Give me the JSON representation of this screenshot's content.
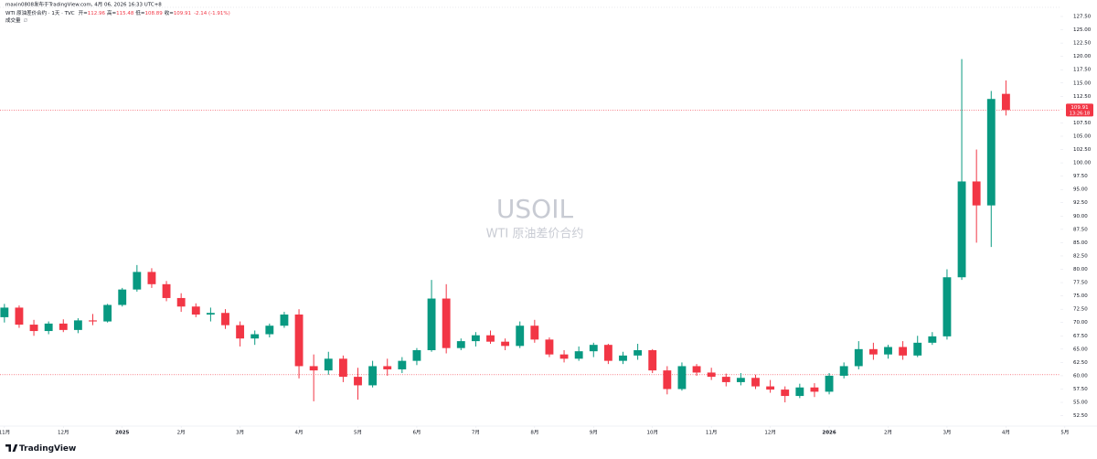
{
  "header": {
    "publisher": "maxin0808发布于TradingView.com, 4月 06, 2026 16:33 UTC+8",
    "symbol": "WTI 原油差价合约 · 1天 · TVC",
    "ohlc_labels": [
      "开=",
      "高=",
      "低=",
      "收="
    ],
    "change": "-2.14 (-1.91%)",
    "volume_label": "成交量",
    "volume_value": "∅"
  },
  "watermark": {
    "ticker": "USOIL",
    "name": "WTI 原油差价合约"
  },
  "logo": "TradingView",
  "chart_data": {
    "type": "candlestick",
    "up_color": "#089981",
    "down_color": "#f23645",
    "candles": [
      [
        71.0,
        73.5,
        70.0,
        72.8
      ],
      [
        72.8,
        73.2,
        69.0,
        69.6
      ],
      [
        69.6,
        70.5,
        67.5,
        68.4
      ],
      [
        68.4,
        70.2,
        67.8,
        69.8
      ],
      [
        69.8,
        70.6,
        68.2,
        68.6
      ],
      [
        68.6,
        70.8,
        68.0,
        70.4
      ],
      [
        70.4,
        71.6,
        69.5,
        70.2
      ],
      [
        70.2,
        73.5,
        70.0,
        73.3
      ],
      [
        73.3,
        76.5,
        73.0,
        76.2
      ],
      [
        76.2,
        80.8,
        75.8,
        79.5
      ],
      [
        79.5,
        80.2,
        76.5,
        77.2
      ],
      [
        77.2,
        77.8,
        74.0,
        74.6
      ],
      [
        74.6,
        75.5,
        72.0,
        73.0
      ],
      [
        73.0,
        73.6,
        71.0,
        71.5
      ],
      [
        71.5,
        72.8,
        70.2,
        71.8
      ],
      [
        71.8,
        72.5,
        68.8,
        69.5
      ],
      [
        69.5,
        70.2,
        65.5,
        67.0
      ],
      [
        67.0,
        68.5,
        65.8,
        67.8
      ],
      [
        67.8,
        69.8,
        67.2,
        69.4
      ],
      [
        69.4,
        72.0,
        69.0,
        71.5
      ],
      [
        71.5,
        72.5,
        59.5,
        61.8
      ],
      [
        61.8,
        64.0,
        55.2,
        61.0
      ],
      [
        61.0,
        64.5,
        60.2,
        63.2
      ],
      [
        63.2,
        63.8,
        58.8,
        59.8
      ],
      [
        59.8,
        61.5,
        55.5,
        58.2
      ],
      [
        58.2,
        62.8,
        57.8,
        61.8
      ],
      [
        61.8,
        63.2,
        60.0,
        61.2
      ],
      [
        61.2,
        63.5,
        60.5,
        62.8
      ],
      [
        62.8,
        65.2,
        62.0,
        64.8
      ],
      [
        64.8,
        78.0,
        64.5,
        74.5
      ],
      [
        74.5,
        77.2,
        64.2,
        65.2
      ],
      [
        65.2,
        67.0,
        64.8,
        66.5
      ],
      [
        66.5,
        68.2,
        65.5,
        67.6
      ],
      [
        67.6,
        68.5,
        66.0,
        66.4
      ],
      [
        66.4,
        67.0,
        64.8,
        65.6
      ],
      [
        65.6,
        70.2,
        65.2,
        69.4
      ],
      [
        69.4,
        70.5,
        66.2,
        66.8
      ],
      [
        66.8,
        67.2,
        63.5,
        64.0
      ],
      [
        64.0,
        64.8,
        62.5,
        63.2
      ],
      [
        63.2,
        65.5,
        62.8,
        64.6
      ],
      [
        64.6,
        66.2,
        63.5,
        65.8
      ],
      [
        65.8,
        66.0,
        62.2,
        62.8
      ],
      [
        62.8,
        64.5,
        62.2,
        63.8
      ],
      [
        63.8,
        66.0,
        63.0,
        64.8
      ],
      [
        64.8,
        65.0,
        60.5,
        61.0
      ],
      [
        61.0,
        61.8,
        56.5,
        57.5
      ],
      [
        57.5,
        62.5,
        57.2,
        61.8
      ],
      [
        61.8,
        62.2,
        60.0,
        60.6
      ],
      [
        60.6,
        61.5,
        59.2,
        59.8
      ],
      [
        59.8,
        60.4,
        58.0,
        58.8
      ],
      [
        58.8,
        60.5,
        58.2,
        59.6
      ],
      [
        59.6,
        60.2,
        57.5,
        58.0
      ],
      [
        58.0,
        59.2,
        56.8,
        57.4
      ],
      [
        57.4,
        58.0,
        55.0,
        56.2
      ],
      [
        56.2,
        58.5,
        55.8,
        57.8
      ],
      [
        57.8,
        58.6,
        56.0,
        57.0
      ],
      [
        57.0,
        60.5,
        56.5,
        60.0
      ],
      [
        60.0,
        62.5,
        59.5,
        61.8
      ],
      [
        61.8,
        66.5,
        61.2,
        65.0
      ],
      [
        65.0,
        66.2,
        63.0,
        64.0
      ],
      [
        64.0,
        65.8,
        63.2,
        65.4
      ],
      [
        65.4,
        66.5,
        63.0,
        63.8
      ],
      [
        63.8,
        67.5,
        63.5,
        66.2
      ],
      [
        66.2,
        68.2,
        65.8,
        67.4
      ],
      [
        67.4,
        80.0,
        66.8,
        78.5
      ],
      [
        78.5,
        119.5,
        78.0,
        96.5
      ],
      [
        96.5,
        102.5,
        85.0,
        92.0
      ],
      [
        92.0,
        113.5,
        84.2,
        112.0
      ],
      [
        112.96,
        115.48,
        108.89,
        109.91
      ]
    ],
    "last_price_timer": "13:26:18",
    "reference_line": 60.2,
    "xlim": [
      -0.3,
      71.7
    ],
    "xticks": [
      {
        "value": 0,
        "label": "11月"
      },
      {
        "value": 4,
        "label": "12月"
      },
      {
        "value": 8,
        "label": "2025"
      },
      {
        "value": 12,
        "label": "2月"
      },
      {
        "value": 16,
        "label": "3月"
      },
      {
        "value": 20,
        "label": "4月"
      },
      {
        "value": 24,
        "label": "5月"
      },
      {
        "value": 28,
        "label": "6月"
      },
      {
        "value": 32,
        "label": "7月"
      },
      {
        "value": 36,
        "label": "8月"
      },
      {
        "value": 40,
        "label": "9月"
      },
      {
        "value": 44,
        "label": "10月"
      },
      {
        "value": 48,
        "label": "11月"
      },
      {
        "value": 52,
        "label": "12月"
      },
      {
        "value": 56,
        "label": "2026"
      },
      {
        "value": 60,
        "label": "2月"
      },
      {
        "value": 64,
        "label": "3月"
      },
      {
        "value": 68,
        "label": "4月"
      },
      {
        "value": 72,
        "label": "5月"
      }
    ],
    "ylim": [
      52.5,
      127.5
    ],
    "yticks": [
      {
        "value": 52.5,
        "label": "52.50"
      },
      {
        "value": 55,
        "label": "55.00"
      },
      {
        "value": 57.5,
        "label": "57.50"
      },
      {
        "value": 60,
        "label": "60.00"
      },
      {
        "value": 62.5,
        "label": "62.50"
      },
      {
        "value": 65,
        "label": "65.00"
      },
      {
        "value": 67.5,
        "label": "67.50"
      },
      {
        "value": 70,
        "label": "70.00"
      },
      {
        "value": 72.5,
        "label": "72.50"
      },
      {
        "value": 75,
        "label": "75.00"
      },
      {
        "value": 77.5,
        "label": "77.50"
      },
      {
        "value": 80,
        "label": "80.00"
      },
      {
        "value": 82.5,
        "label": "82.50"
      },
      {
        "value": 85,
        "label": "85.00"
      },
      {
        "value": 87.5,
        "label": "87.50"
      },
      {
        "value": 90,
        "label": "90.00"
      },
      {
        "value": 92.5,
        "label": "92.50"
      },
      {
        "value": 95,
        "label": "95.00"
      },
      {
        "value": 97.5,
        "label": "97.50"
      },
      {
        "value": 100,
        "label": "100.00"
      },
      {
        "value": 102.5,
        "label": "102.50"
      },
      {
        "value": 105,
        "label": "105.00"
      },
      {
        "value": 107.5,
        "label": "107.50"
      },
      {
        "value": 110,
        "label": "110.00"
      },
      {
        "value": 112.5,
        "label": "112.50"
      },
      {
        "value": 115,
        "label": "115.00"
      },
      {
        "value": 117.5,
        "label": "117.50"
      },
      {
        "value": 120,
        "label": "120.00"
      },
      {
        "value": 122.5,
        "label": "122.50"
      },
      {
        "value": 125,
        "label": "125.00"
      },
      {
        "value": 127.5,
        "label": "127.50"
      }
    ],
    "grid": false
  }
}
